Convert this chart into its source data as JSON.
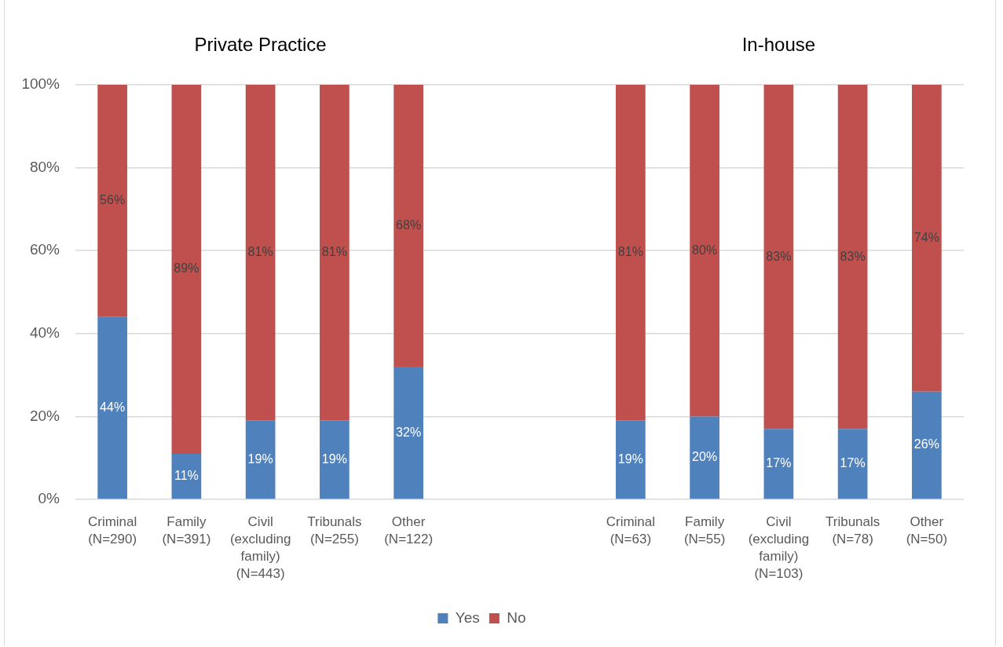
{
  "chart_data": {
    "type": "bar",
    "stacked": true,
    "categories": [
      "Criminal (N=290)",
      "Family (N=391)",
      "Civil (excluding family) (N=443)",
      "Tribunals (N=255)",
      "Other (N=122)",
      null,
      null,
      "Criminal (N=63)",
      "Family (N=55)",
      "Civil (excluding family) (N=103)",
      "Tribunals (N=78)",
      "Other (N=50)"
    ],
    "series": [
      {
        "name": "Yes",
        "color": "#4f81bd",
        "values": [
          44,
          11,
          19,
          19,
          32,
          null,
          null,
          19,
          20,
          17,
          17,
          26
        ],
        "value_labels": [
          "44%",
          "11%",
          "19%",
          "19%",
          "32%",
          null,
          null,
          "19%",
          "20%",
          "17%",
          "17%",
          "26%"
        ]
      },
      {
        "name": "No",
        "color": "#c0504d",
        "values": [
          56,
          89,
          81,
          81,
          68,
          null,
          null,
          81,
          80,
          83,
          83,
          74
        ],
        "value_labels": [
          "56%",
          "89%",
          "81%",
          "81%",
          "68%",
          null,
          null,
          "81%",
          "80%",
          "83%",
          "83%",
          "74%"
        ]
      }
    ],
    "ylim": [
      0,
      100
    ],
    "yticks": [
      {
        "value": 0,
        "label": "0%"
      },
      {
        "value": 20,
        "label": "20%"
      },
      {
        "value": 40,
        "label": "40%"
      },
      {
        "value": 60,
        "label": "60%"
      },
      {
        "value": 80,
        "label": "80%"
      },
      {
        "value": 100,
        "label": "100%"
      }
    ],
    "grid": "y",
    "legend": "bottom",
    "annotations": [
      "Private Practice",
      "In-house"
    ]
  }
}
